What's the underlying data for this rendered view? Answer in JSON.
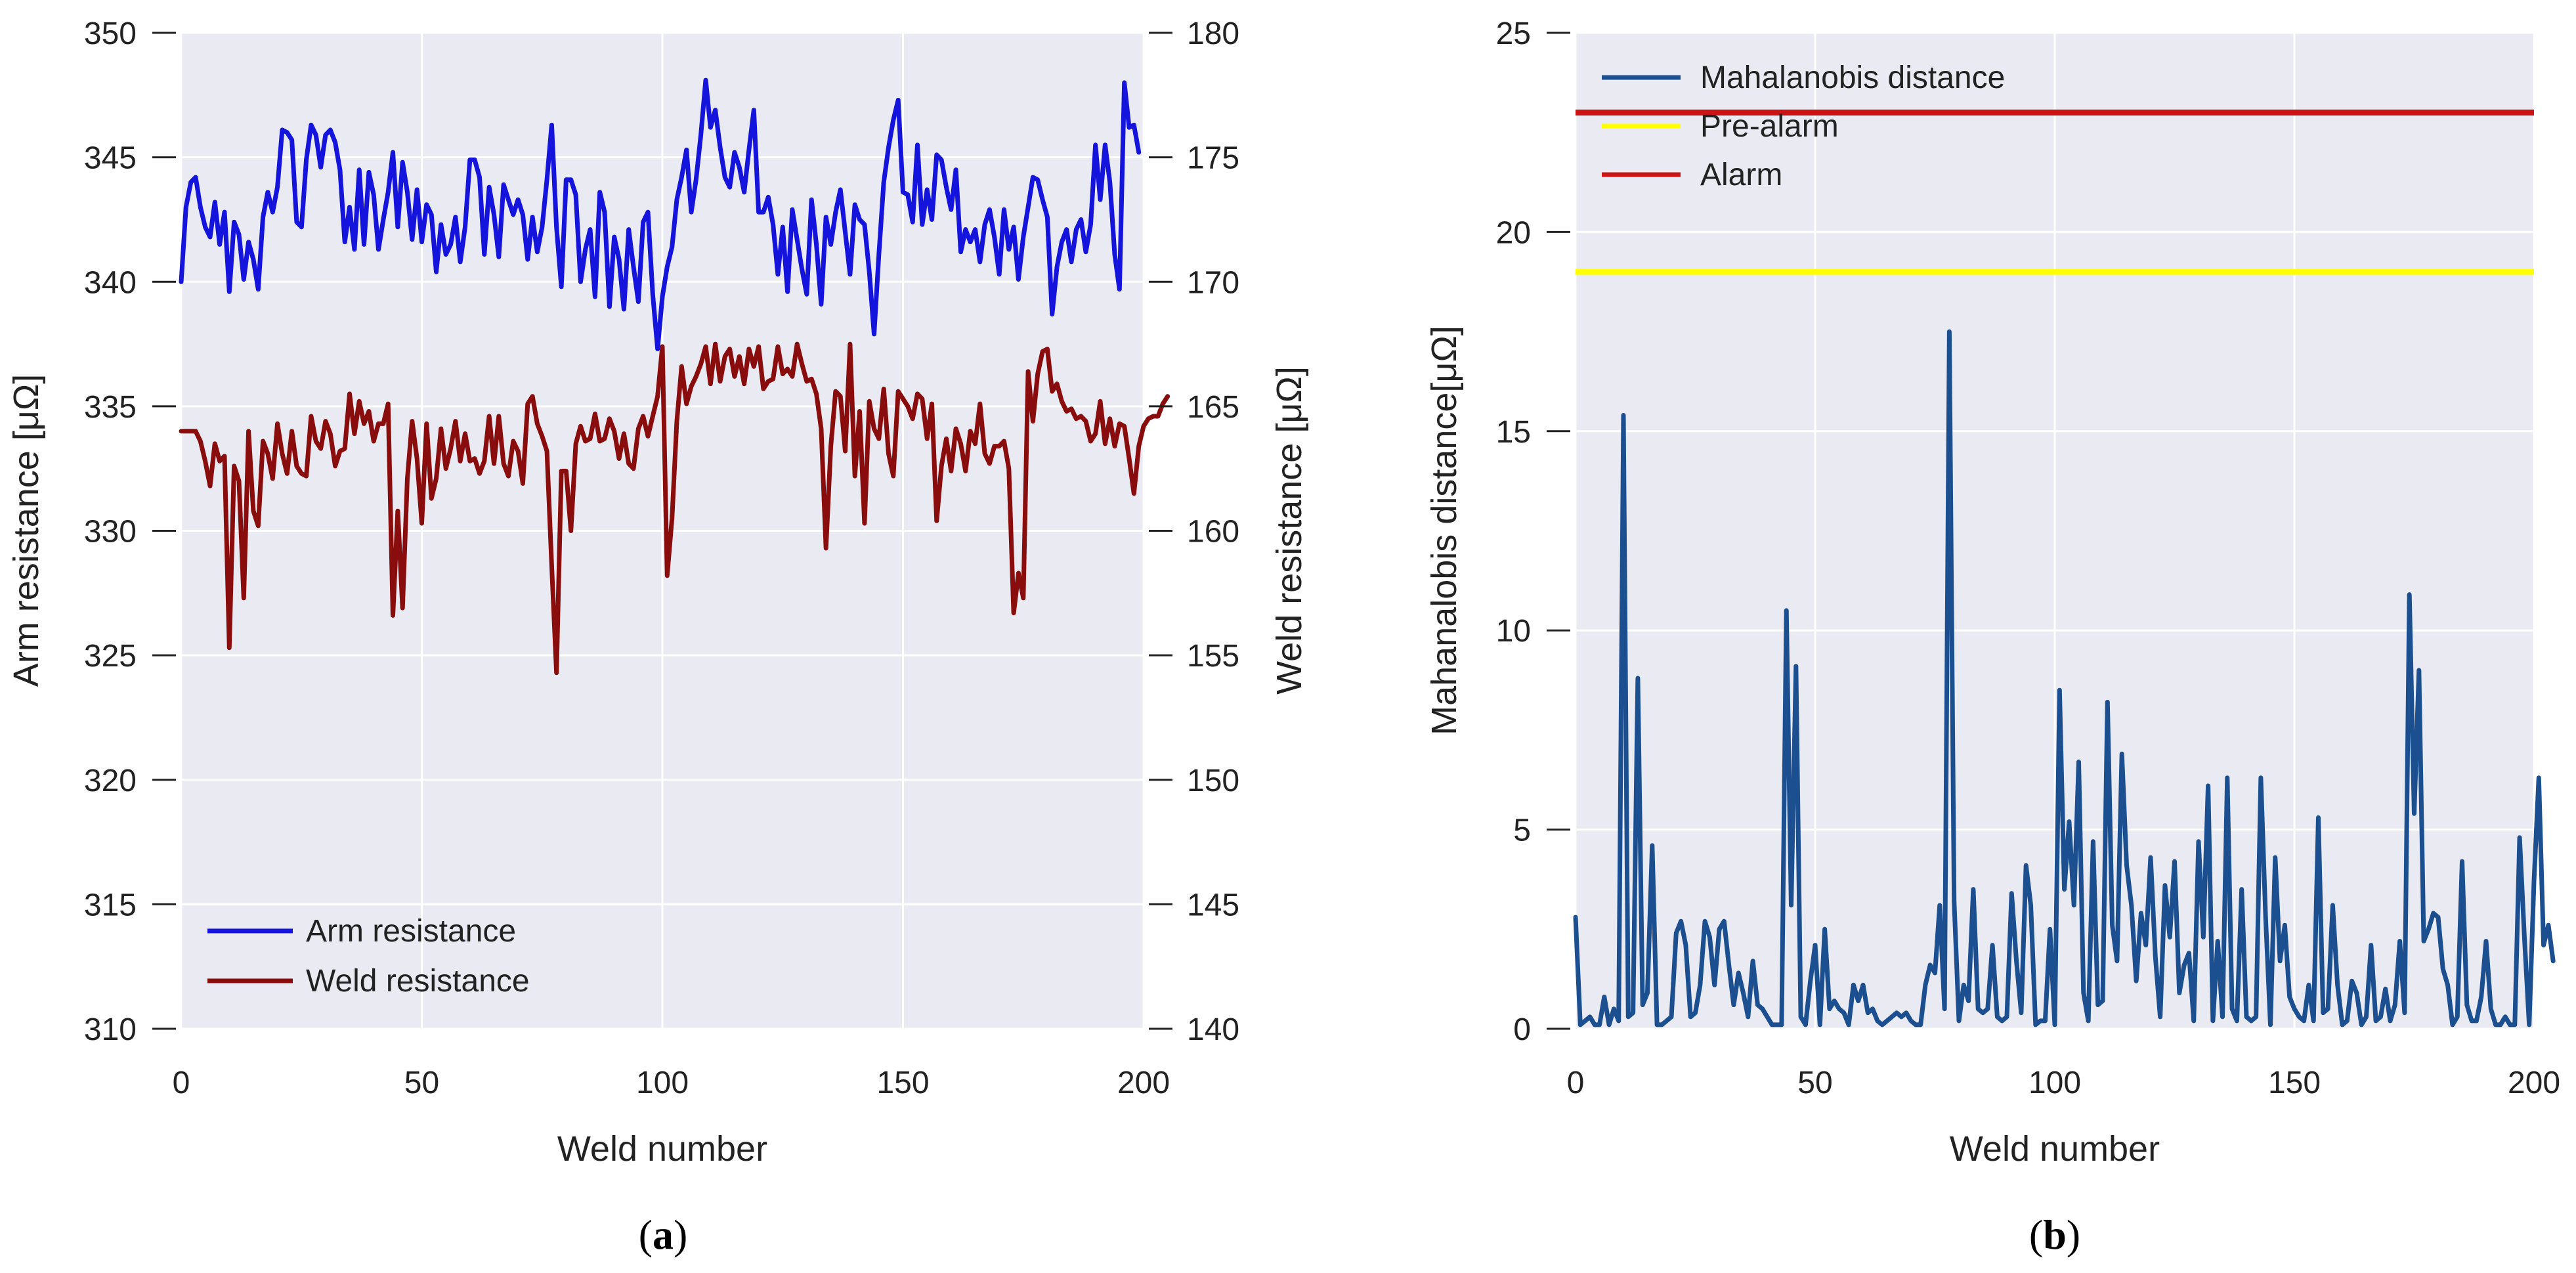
{
  "chart_data": [
    {
      "id": "a",
      "type": "line",
      "caption_open": "(",
      "caption_letter": "a",
      "caption_close": ")",
      "xlabel": "Weld number",
      "ylabel": "Arm resistance [μΩ]",
      "ylabel_right": "Weld resistance [μΩ]",
      "xlim": [
        0,
        200
      ],
      "ylim": [
        310,
        350
      ],
      "ylim_right": [
        140,
        180
      ],
      "xticks": [
        0,
        50,
        100,
        150,
        200
      ],
      "xtick_labels": [
        "0",
        "50",
        "100",
        "150",
        "200"
      ],
      "yticks": [
        310,
        315,
        320,
        325,
        330,
        335,
        340,
        345,
        350
      ],
      "ytick_labels": [
        "310",
        "315",
        "320",
        "325",
        "330",
        "335",
        "340",
        "345",
        "350"
      ],
      "yticks_right": [
        140,
        145,
        150,
        155,
        160,
        165,
        170,
        175,
        180
      ],
      "ytick_labels_right": [
        "140",
        "145",
        "150",
        "155",
        "160",
        "165",
        "170",
        "175",
        "180"
      ],
      "grid": true,
      "legend_position": "lower-left",
      "series": [
        {
          "name": "Arm resistance",
          "axis": "left",
          "color": "#1414dc",
          "x_start": 0,
          "x_step": 1,
          "values": [
            340,
            343,
            344,
            344.2,
            343,
            342.2,
            341.8,
            343.2,
            341.5,
            342.8,
            339.6,
            342.4,
            341.9,
            340.1,
            341.6,
            340.9,
            339.7,
            342.6,
            343.6,
            342.8,
            343.8,
            346.1,
            346,
            345.7,
            342.4,
            342.2,
            344.9,
            346.3,
            345.9,
            344.6,
            345.9,
            346.1,
            345.6,
            344.5,
            341.6,
            343,
            341.3,
            344.5,
            341.5,
            344.4,
            343.5,
            341.3,
            342.5,
            343.6,
            345.2,
            342.2,
            344.8,
            343.6,
            341.7,
            343.7,
            341.6,
            343.1,
            342.7,
            340.4,
            342.3,
            341.1,
            341.5,
            342.6,
            340.8,
            342.2,
            344.9,
            344.9,
            344.2,
            341.1,
            343.8,
            342.7,
            341,
            343.9,
            343.3,
            342.7,
            343.3,
            342.7,
            340.9,
            342.6,
            341.2,
            342.2,
            344.1,
            346.3,
            342.2,
            339.8,
            344.1,
            344.1,
            343.5,
            340,
            341.3,
            342.1,
            339.4,
            343.6,
            342.8,
            339,
            341.8,
            340.9,
            338.9,
            342.1,
            340.6,
            339.2,
            342.4,
            342.8,
            339.5,
            337.3,
            339.4,
            340.6,
            341.4,
            343.3,
            344.2,
            345.3,
            342.8,
            344.1,
            345.9,
            348.1,
            346.2,
            346.9,
            345.4,
            344.2,
            343.8,
            345.2,
            344.6,
            343.6,
            345.3,
            346.9,
            342.8,
            342.8,
            343.4,
            342.3,
            340.3,
            342.2,
            339.6,
            342.9,
            341.7,
            340.5,
            339.5,
            343.3,
            341.5,
            339.1,
            342.6,
            341.5,
            342.8,
            343.7,
            342,
            340.3,
            343.1,
            342.5,
            342.3,
            340.4,
            337.9,
            341.1,
            344,
            345.4,
            346.5,
            347.3,
            343.6,
            343.5,
            342.4,
            345.5,
            342.3,
            343.7,
            342.5,
            345.1,
            344.9,
            343.8,
            342.9,
            344.5,
            341.2,
            342.1,
            341.6,
            342.1,
            340.8,
            342.3,
            342.9,
            341.8,
            340.3,
            342.9,
            341.3,
            342.2,
            340.1,
            341.8,
            343,
            344.2,
            344.1,
            343.3,
            342.6,
            338.7,
            340.6,
            341.6,
            342.1,
            340.8,
            342.1,
            342.5,
            341.2,
            342.3,
            345.5,
            343.3,
            345.5,
            344,
            341.1,
            339.7,
            348,
            346.2,
            346.3,
            345.2
          ]
        },
        {
          "name": "Weld resistance",
          "axis": "right",
          "color": "#8a0d0d",
          "x_start": 0,
          "x_step": 1,
          "values": [
            164,
            164,
            164,
            164,
            163.6,
            162.8,
            161.8,
            163.5,
            162.8,
            163,
            155.3,
            162.6,
            162,
            157.3,
            164,
            160.8,
            160.2,
            163.6,
            163.1,
            162.1,
            164.3,
            163.1,
            162.3,
            164,
            162.6,
            162.3,
            162.2,
            164.6,
            163.6,
            163.3,
            164.4,
            163.9,
            162.6,
            163.2,
            163.3,
            165.5,
            163.9,
            165.2,
            164.3,
            164.8,
            163.6,
            164.3,
            164.3,
            165.1,
            156.6,
            160.8,
            156.9,
            162.1,
            164.4,
            162.9,
            160.3,
            164.3,
            161.3,
            162.1,
            164.1,
            162.5,
            163.3,
            164.4,
            162.8,
            163.9,
            162.8,
            162.9,
            162.3,
            162.8,
            164.6,
            162.7,
            164.6,
            162.7,
            162.2,
            163.6,
            163.2,
            161.9,
            165.1,
            165.4,
            164.3,
            163.8,
            163.2,
            158.6,
            154.3,
            162.4,
            162.4,
            160,
            163.5,
            164.2,
            163.6,
            163.7,
            164.7,
            163.6,
            163.7,
            164.5,
            164,
            162.9,
            163.9,
            162.7,
            162.5,
            164.1,
            164.6,
            163.8,
            164.6,
            165.4,
            167.4,
            158.2,
            160.5,
            164.4,
            166.6,
            165.1,
            165.8,
            166.2,
            166.7,
            167.4,
            165.9,
            167.5,
            166,
            167,
            167.3,
            166.2,
            167,
            165.9,
            167.3,
            166.6,
            167.4,
            165.7,
            166,
            166.1,
            167.4,
            166.3,
            166.5,
            166.2,
            167.5,
            166.7,
            166,
            166.1,
            165.5,
            164.1,
            159.3,
            163.4,
            165.6,
            165.4,
            163.2,
            167.5,
            162.2,
            164.8,
            160.3,
            165.2,
            164.1,
            163.7,
            165.7,
            163.1,
            162.2,
            165.6,
            165.3,
            165,
            164.5,
            165.5,
            165.3,
            163.7,
            165.1,
            160.4,
            162.6,
            163.7,
            162.4,
            164.1,
            163.5,
            162.4,
            164,
            163.5,
            165.1,
            163.1,
            162.7,
            163.4,
            163.4,
            163.6,
            162.5,
            156.7,
            158.3,
            157.3,
            166.4,
            164.4,
            166.3,
            167.2,
            167.3,
            165.6,
            165.9,
            165.2,
            164.8,
            164.9,
            164.5,
            164.6,
            164.4,
            163.6,
            163.9,
            165.2,
            163.5,
            164.5,
            163.4,
            164.3,
            164.2,
            162.9,
            161.5,
            163.4,
            164.2,
            164.5,
            164.6,
            164.6,
            165.1,
            165.4
          ]
        }
      ]
    },
    {
      "id": "b",
      "type": "line",
      "caption_open": "(",
      "caption_letter": "b",
      "caption_close": ")",
      "xlabel": "Weld number",
      "ylabel": "Mahanalobis distance[μΩ]",
      "xlim": [
        0,
        200
      ],
      "ylim": [
        0,
        25
      ],
      "xticks": [
        0,
        50,
        100,
        150,
        200
      ],
      "xtick_labels": [
        "0",
        "50",
        "100",
        "150",
        "200"
      ],
      "yticks": [
        0,
        5,
        10,
        15,
        20,
        25
      ],
      "ytick_labels": [
        "0",
        "5",
        "10",
        "15",
        "20",
        "25"
      ],
      "grid": true,
      "legend_position": "top-left",
      "series": [
        {
          "name": "Mahalanobis distance",
          "color": "#1b4f8f",
          "x_start": 0,
          "x_step": 1,
          "values": [
            2.8,
            0.1,
            0.2,
            0.3,
            0.1,
            0.1,
            0.8,
            0.1,
            0.5,
            0.2,
            15.4,
            0.3,
            0.4,
            8.8,
            0.6,
            0.9,
            4.6,
            0.1,
            0.1,
            0.2,
            0.3,
            2.4,
            2.7,
            2.1,
            0.3,
            0.4,
            1.1,
            2.7,
            2.3,
            1.1,
            2.5,
            2.7,
            1.6,
            0.6,
            1.4,
            0.9,
            0.3,
            1.7,
            0.6,
            0.5,
            0.3,
            0.1,
            0.1,
            0.1,
            10.5,
            3.1,
            9.1,
            0.3,
            0.1,
            1.2,
            2.1,
            0.1,
            2.5,
            0.5,
            0.7,
            0.5,
            0.4,
            0.1,
            1.1,
            0.7,
            1.1,
            0.4,
            0.5,
            0.2,
            0.1,
            0.2,
            0.3,
            0.4,
            0.3,
            0.4,
            0.2,
            0.1,
            0.1,
            1.1,
            1.6,
            1.4,
            3.1,
            0.5,
            17.5,
            3.2,
            0.2,
            1.1,
            0.7,
            3.5,
            0.5,
            0.4,
            0.5,
            2.1,
            0.3,
            0.2,
            0.3,
            3.4,
            1.7,
            0.4,
            4.1,
            3.1,
            0.1,
            0.2,
            0.2,
            2.5,
            0.1,
            8.5,
            3.5,
            5.2,
            3.1,
            6.7,
            0.9,
            0.2,
            4.7,
            0.6,
            0.7,
            8.2,
            2.6,
            1.7,
            6.9,
            4.1,
            3.1,
            1.2,
            2.9,
            2.1,
            4.3,
            1.8,
            0.3,
            3.6,
            2.3,
            4.2,
            0.9,
            1.6,
            1.9,
            0.2,
            4.7,
            2.3,
            6.1,
            0.2,
            2.2,
            0.3,
            6.3,
            0.5,
            0.2,
            3.5,
            0.3,
            0.2,
            0.3,
            6.3,
            2.8,
            0.1,
            4.3,
            1.7,
            2.6,
            0.8,
            0.5,
            0.3,
            0.2,
            1.1,
            0.2,
            5.3,
            0.4,
            0.5,
            3.1,
            1.1,
            0.1,
            0.2,
            1.2,
            0.9,
            0.1,
            0.3,
            2.1,
            0.2,
            0.3,
            1.0,
            0.2,
            0.6,
            2.2,
            0.4,
            10.9,
            5.4,
            9.0,
            2.2,
            2.5,
            2.9,
            2.8,
            1.5,
            1.1,
            0.1,
            0.3,
            4.2,
            0.6,
            0.2,
            0.2,
            0.8,
            2.2,
            0.5,
            0.1,
            0.1,
            0.3,
            0.1,
            0.1,
            4.8,
            2.3,
            0.1,
            3.7,
            6.3,
            2.1,
            2.6,
            1.7
          ]
        },
        {
          "name": "Pre-alarm",
          "color": "#ffff00",
          "constant": 19
        },
        {
          "name": "Alarm",
          "color": "#c81414",
          "constant": 23
        }
      ]
    }
  ]
}
